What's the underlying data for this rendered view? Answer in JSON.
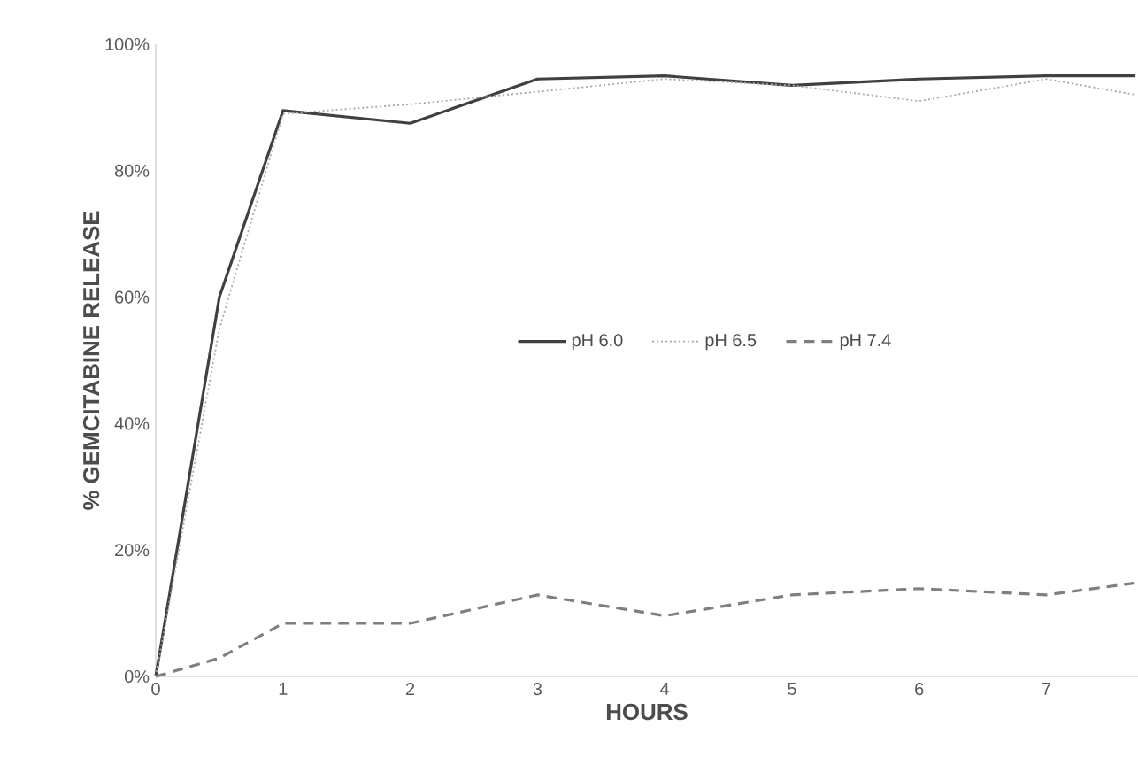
{
  "chart_data": {
    "type": "line",
    "xlabel": "HOURS",
    "ylabel": "% GEMCITABINE RELEASE",
    "x": [
      0,
      0.5,
      1,
      2,
      3,
      4,
      5,
      6,
      7,
      7.7
    ],
    "xlim": [
      0,
      7.72
    ],
    "xticks": [
      0,
      1,
      2,
      3,
      4,
      5,
      6,
      7
    ],
    "ylim": [
      0,
      100
    ],
    "yticks": [
      {
        "value": 0,
        "label": "0%"
      },
      {
        "value": 20,
        "label": "20%"
      },
      {
        "value": 40,
        "label": "40%"
      },
      {
        "value": 60,
        "label": "60%"
      },
      {
        "value": 80,
        "label": "80%"
      },
      {
        "value": 100,
        "label": "100%"
      }
    ],
    "grid": false,
    "legend": "right",
    "marker": "none",
    "series": [
      {
        "name": "pH 6.0",
        "color": "#404040",
        "line_style": "solid",
        "values": [
          0,
          60,
          89.5,
          87.5,
          94.5,
          95,
          93.5,
          94.5,
          95,
          95
        ]
      },
      {
        "name": "pH 6.5",
        "color": "#a6a6a6",
        "line_style": "dotted",
        "values": [
          0,
          55,
          89,
          90.5,
          92.5,
          94.5,
          93.5,
          91,
          94.5,
          92
        ]
      },
      {
        "name": "pH 7.4",
        "color": "#7f7f7f",
        "line_style": "dashed",
        "values": [
          0,
          2.9,
          8.4,
          8.4,
          12.9,
          9.6,
          12.9,
          13.9,
          12.9,
          14.8
        ]
      }
    ]
  }
}
